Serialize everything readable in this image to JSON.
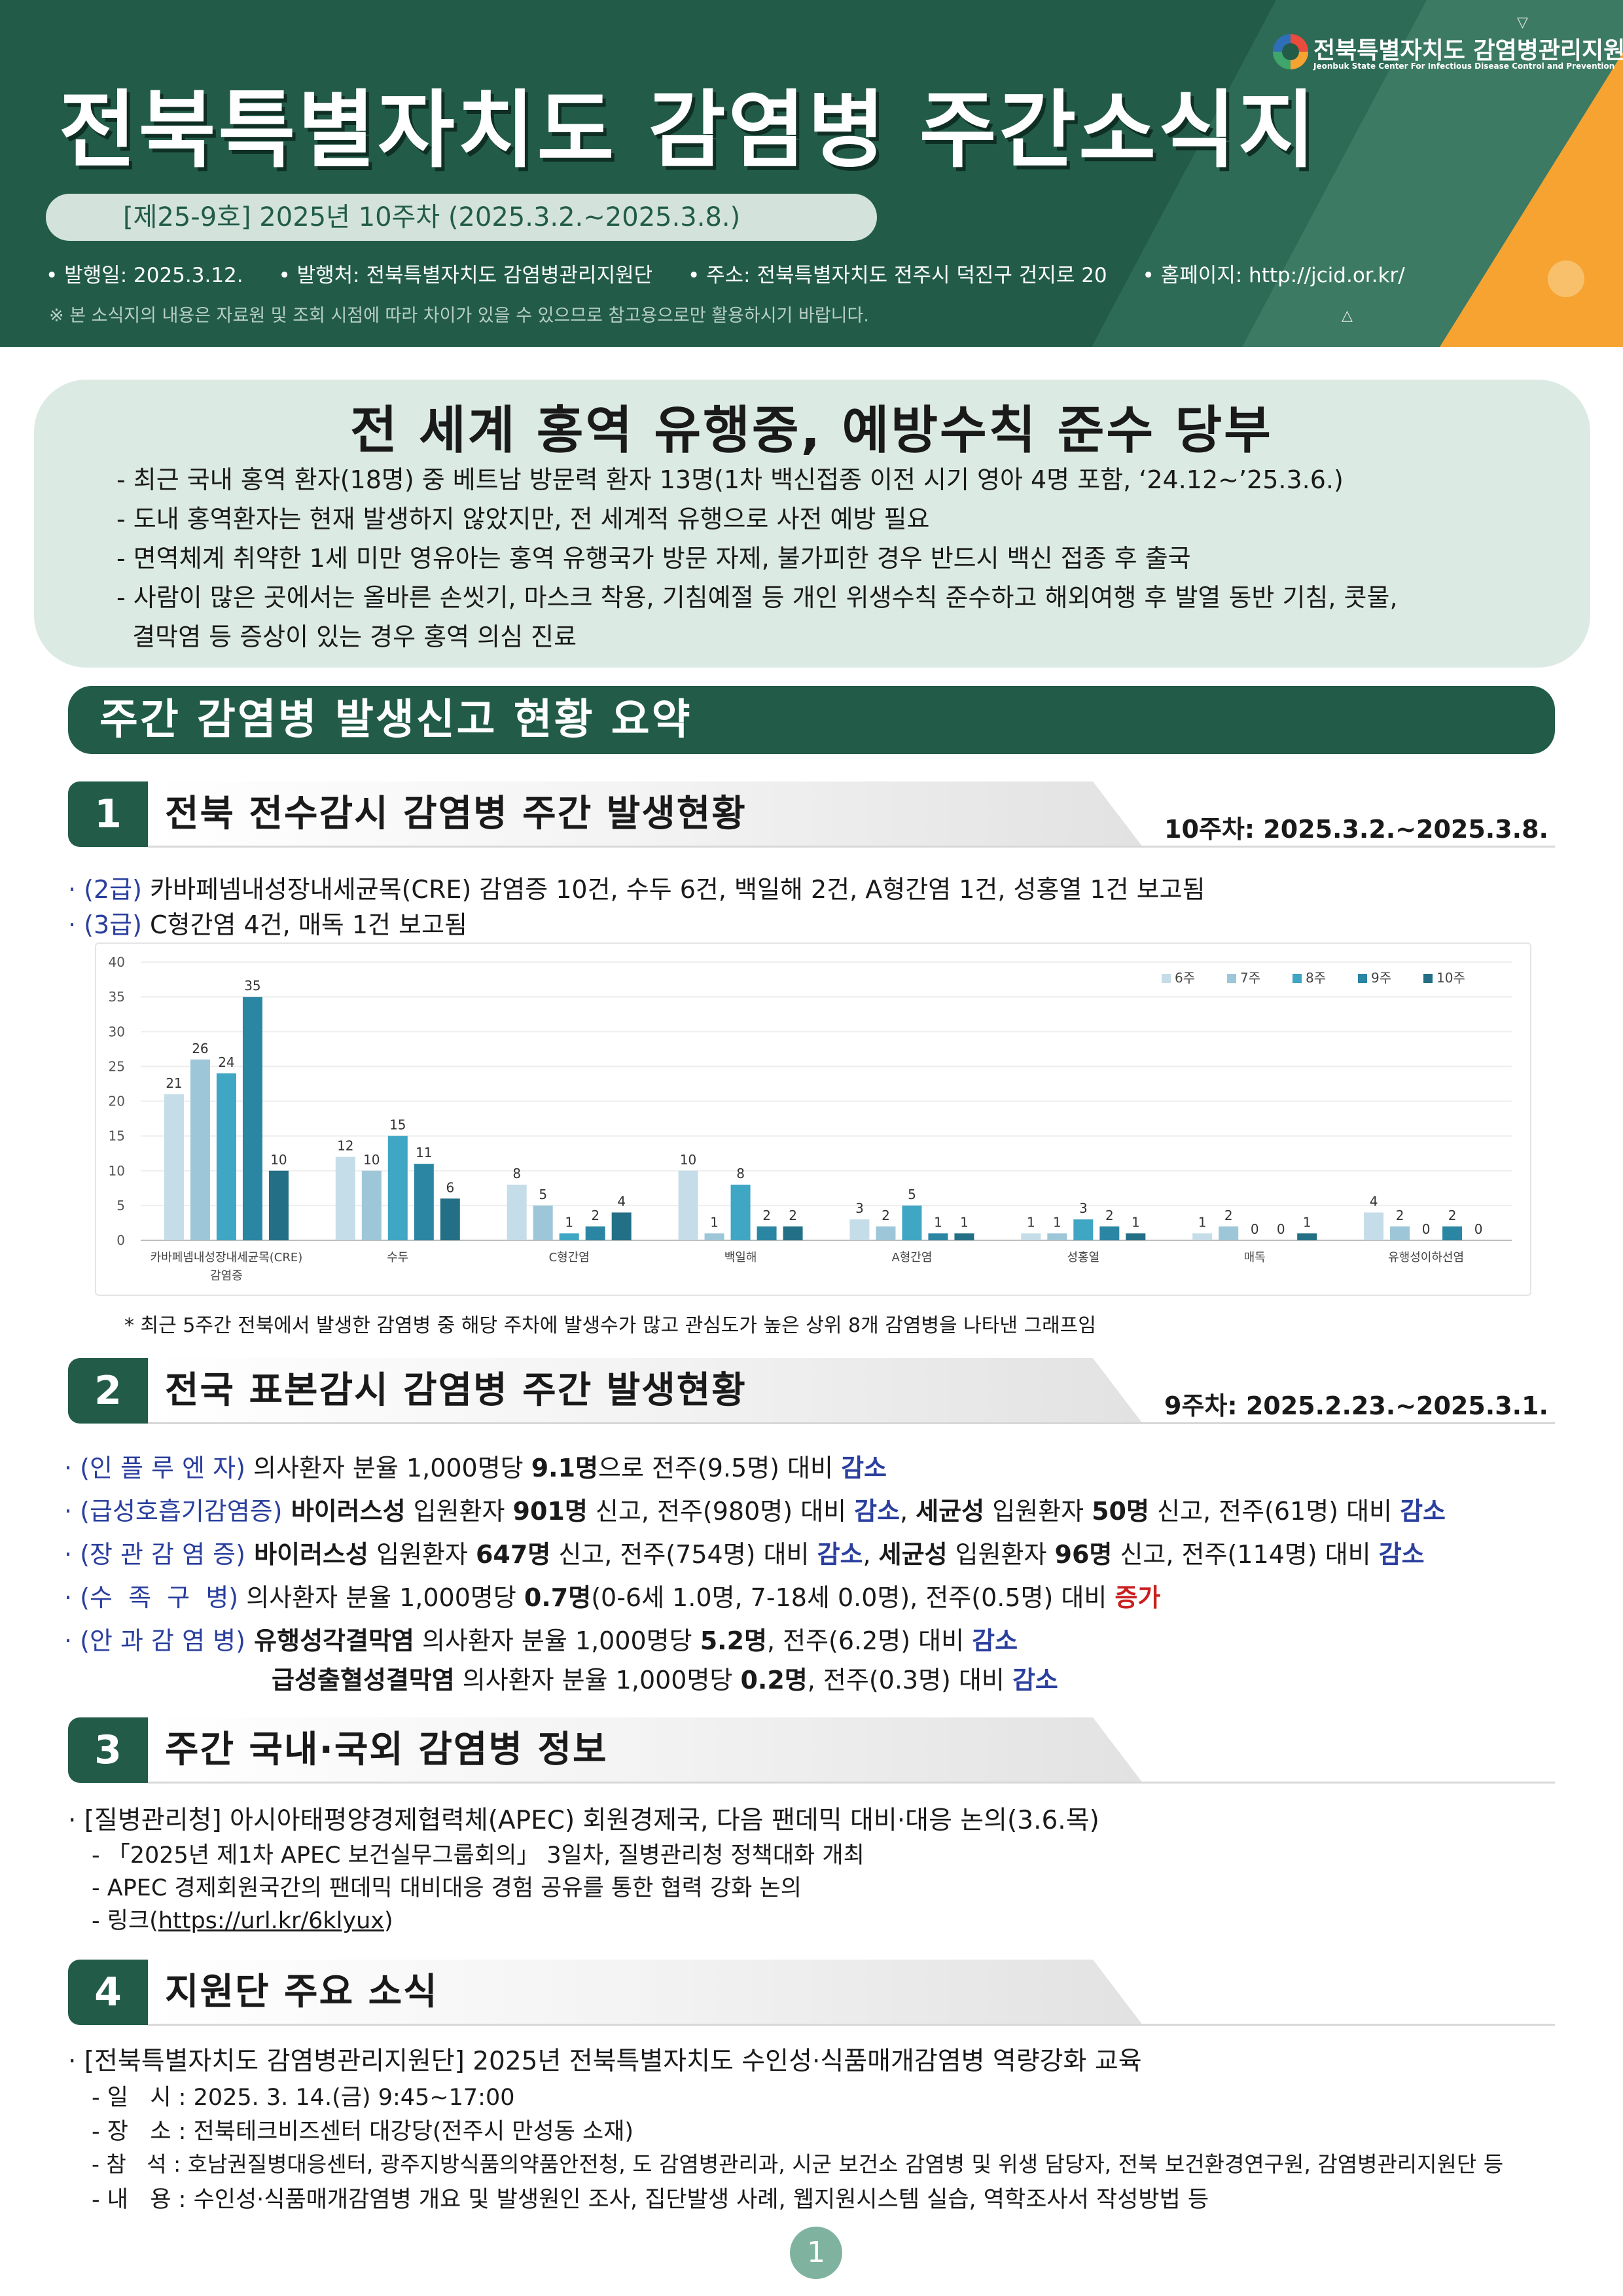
{
  "header": {
    "title": "전북특별자치도  감염병  주간소식지",
    "issue": "[제25-9호] 2025년 10주차 (2025.3.2.~2025.3.8.)",
    "meta": [
      "• 발행일: 2025.3.12.",
      "• 발행처: 전북특별자치도 감염병관리지원단",
      "• 주소: 전북특별자치도 전주시 덕진구 건지로 20",
      "• 홈페이지: http://jcid.or.kr/"
    ],
    "note": "※ 본 소식지의 내용은 자료원 및 조회 시점에 따라 차이가 있을 수 있으므로 참고용으로만 활용하시기 바랍니다.",
    "logo_ko": "전북특별자치도 감염병관리지원단",
    "logo_en": "Jeonbuk State Center For Infectious Disease Control and Prevention"
  },
  "alert": {
    "title": "전 세계 홍역 유행중, 예방수칙 준수 당부",
    "lines": [
      "- 최근 국내 홍역 환자(18명) 중 베트남 방문력 환자 13명(1차 백신접종 이전 시기 영아 4명 포함, ‘24.12~’25.3.6.)",
      "- 도내 홍역환자는 현재 발생하지 않았지만, 전 세계적 유행으로 사전 예방 필요",
      "- 면역체계 취약한 1세 미만 영유아는 홍역 유행국가 방문 자제, 불가피한 경우 반드시 백신 접종 후 출국",
      "- 사람이 많은 곳에서는 올바른 손씻기, 마스크 착용, 기침예절 등 개인 위생수칙 준수하고 해외여행 후 발열 동반 기침, 콧물,",
      "  결막염 등 증상이 있는 경우 홍역 의심 진료"
    ]
  },
  "summary_banner": "주간 감염병 발생신고 현황 요약",
  "section1": {
    "num": "1",
    "label": "전북 전수감시 감염병 주간 발생현황",
    "period": "10주차: 2025.3.2.~2025.3.8.",
    "line1_grade": "· (2급)",
    "line1_text": " 카바페넴내성장내세균목(CRE) 감염증 10건, 수두 6건, 백일해 2건, A형간염 1건, 성홍열 1건 보고됨",
    "line2_grade": "· (3급)",
    "line2_text": " C형간염 4건, 매독 1건 보고됨",
    "footnote": "* 최근 5주간 전북에서 발생한 감염병 중 해당 주차에 발생수가 많고 관심도가 높은 상위 8개 감염병을 나타낸 그래프임"
  },
  "chart_data": {
    "type": "bar",
    "categories": [
      "카바페넴내성장내세균목(CRE) 감염증",
      "수두",
      "C형간염",
      "백일해",
      "A형간염",
      "성홍열",
      "매독",
      "유행성이하선염"
    ],
    "series": [
      {
        "name": "6주",
        "values": [
          21,
          12,
          8,
          10,
          3,
          1,
          1,
          4
        ]
      },
      {
        "name": "7주",
        "values": [
          26,
          10,
          5,
          1,
          2,
          1,
          2,
          2
        ]
      },
      {
        "name": "8주",
        "values": [
          24,
          15,
          1,
          8,
          5,
          3,
          0,
          0
        ]
      },
      {
        "name": "9주",
        "values": [
          35,
          11,
          2,
          2,
          1,
          2,
          0,
          2
        ]
      },
      {
        "name": "10주",
        "values": [
          10,
          6,
          4,
          2,
          1,
          1,
          1,
          0
        ]
      }
    ],
    "colors": [
      "#c5dde8",
      "#9dc7d8",
      "#3fa6c4",
      "#2b86a3",
      "#236f86"
    ],
    "yticks": [
      "0",
      "5",
      "10",
      "15",
      "20",
      "25",
      "30",
      "35",
      "40"
    ],
    "ylim": [
      0,
      40
    ],
    "legend": "top-right",
    "grid": true
  },
  "section2": {
    "num": "2",
    "label": "전국 표본감시 감염병 주간 발생현황",
    "period": "9주차: 2025.2.23.~2025.3.1.",
    "l1_tag": "· (인 플 루 엔 자)",
    "l1_a": " 의사환자 분율 1,000명당 ",
    "l1_b": "9.1명",
    "l1_c": "으로 전주(9.5명) 대비 ",
    "l1_d": "감소",
    "l2_tag": "· (급성호흡기감염증)",
    "l2_a": " 바이러스성",
    "l2_b": " 입원환자 ",
    "l2_c": "901명",
    "l2_d": " 신고, 전주(980명) 대비 ",
    "l2_e": "감소",
    "l2_f": ", ",
    "l2_g": "세균성",
    "l2_h": " 입원환자 ",
    "l2_i": "50명",
    "l2_j": " 신고, 전주(61명) 대비 ",
    "l2_k": "감소",
    "l3_tag": "· (장 관 감 염 증)",
    "l3_a": " 바이러스성",
    "l3_b": " 입원환자 ",
    "l3_c": "647명",
    "l3_d": " 신고, 전주(754명) 대비 ",
    "l3_e": "감소",
    "l3_f": ", ",
    "l3_g": "세균성",
    "l3_h": " 입원환자 ",
    "l3_i": "96명",
    "l3_j": " 신고, 전주(114명) 대비 ",
    "l3_k": "감소",
    "l4_tag": "· (수  족  구  병)",
    "l4_a": " 의사환자 분율 1,000명당 ",
    "l4_b": "0.7명",
    "l4_c": "(0-6세 1.0명, 7-18세 0.0명), 전주(0.5명) 대비 ",
    "l4_d": "증가",
    "l5_tag": "· (안 과 감 염 병)",
    "l5_a": " 유행성각결막염",
    "l5_b": " 의사환자 분율 1,000명당 ",
    "l5_c": "5.2명",
    "l5_d": ", 전주(6.2명) 대비 ",
    "l5_e": "감소",
    "l6_a": "급성출혈성결막염",
    "l6_b": " 의사환자 분율 1,000명당 ",
    "l6_c": "0.2명",
    "l6_d": ", 전주(0.3명) 대비 ",
    "l6_e": "감소"
  },
  "section3": {
    "num": "3",
    "label": "주간 국내·국외 감염병 정보",
    "lines": [
      "· [질병관리청] 아시아태평양경제협력체(APEC) 회원경제국, 다음 팬데믹 대비·대응 논의(3.6.목)",
      "- 「2025년 제1차 APEC 보건실무그룹회의」 3일차, 질병관리청 정책대화 개최",
      "- APEC 경제회원국간의 팬데믹 대비대응 경험 공유를 통한 협력 강화 논의"
    ],
    "link_prefix": "- 링크(",
    "link": "https://url.kr/6klyux",
    "link_suffix": ")"
  },
  "section4": {
    "num": "4",
    "label": "지원단 주요 소식",
    "lines": [
      "· [전북특별자치도 감염병관리지원단] 2025년 전북특별자치도 수인성·식품매개감염병 역량강화 교육",
      "- 일   시 : 2025. 3. 14.(금) 9:45~17:00",
      "- 장   소 : 전북테크비즈센터 대강당(전주시 만성동 소재)",
      "- 참   석 : 호남권질병대응센터, 광주지방식품의약품안전청, 도 감염병관리과, 시군 보건소 감염병 및 위생 담당자, 전북 보건환경연구원, 감염병관리지원단 등",
      "- 내   용 : 수인성·식품매개감염병 개요 및 발생원인 조사, 집단발생 사례, 웹지원시스템 실습, 역학조사서 작성방법 등"
    ]
  },
  "page_number": "1"
}
